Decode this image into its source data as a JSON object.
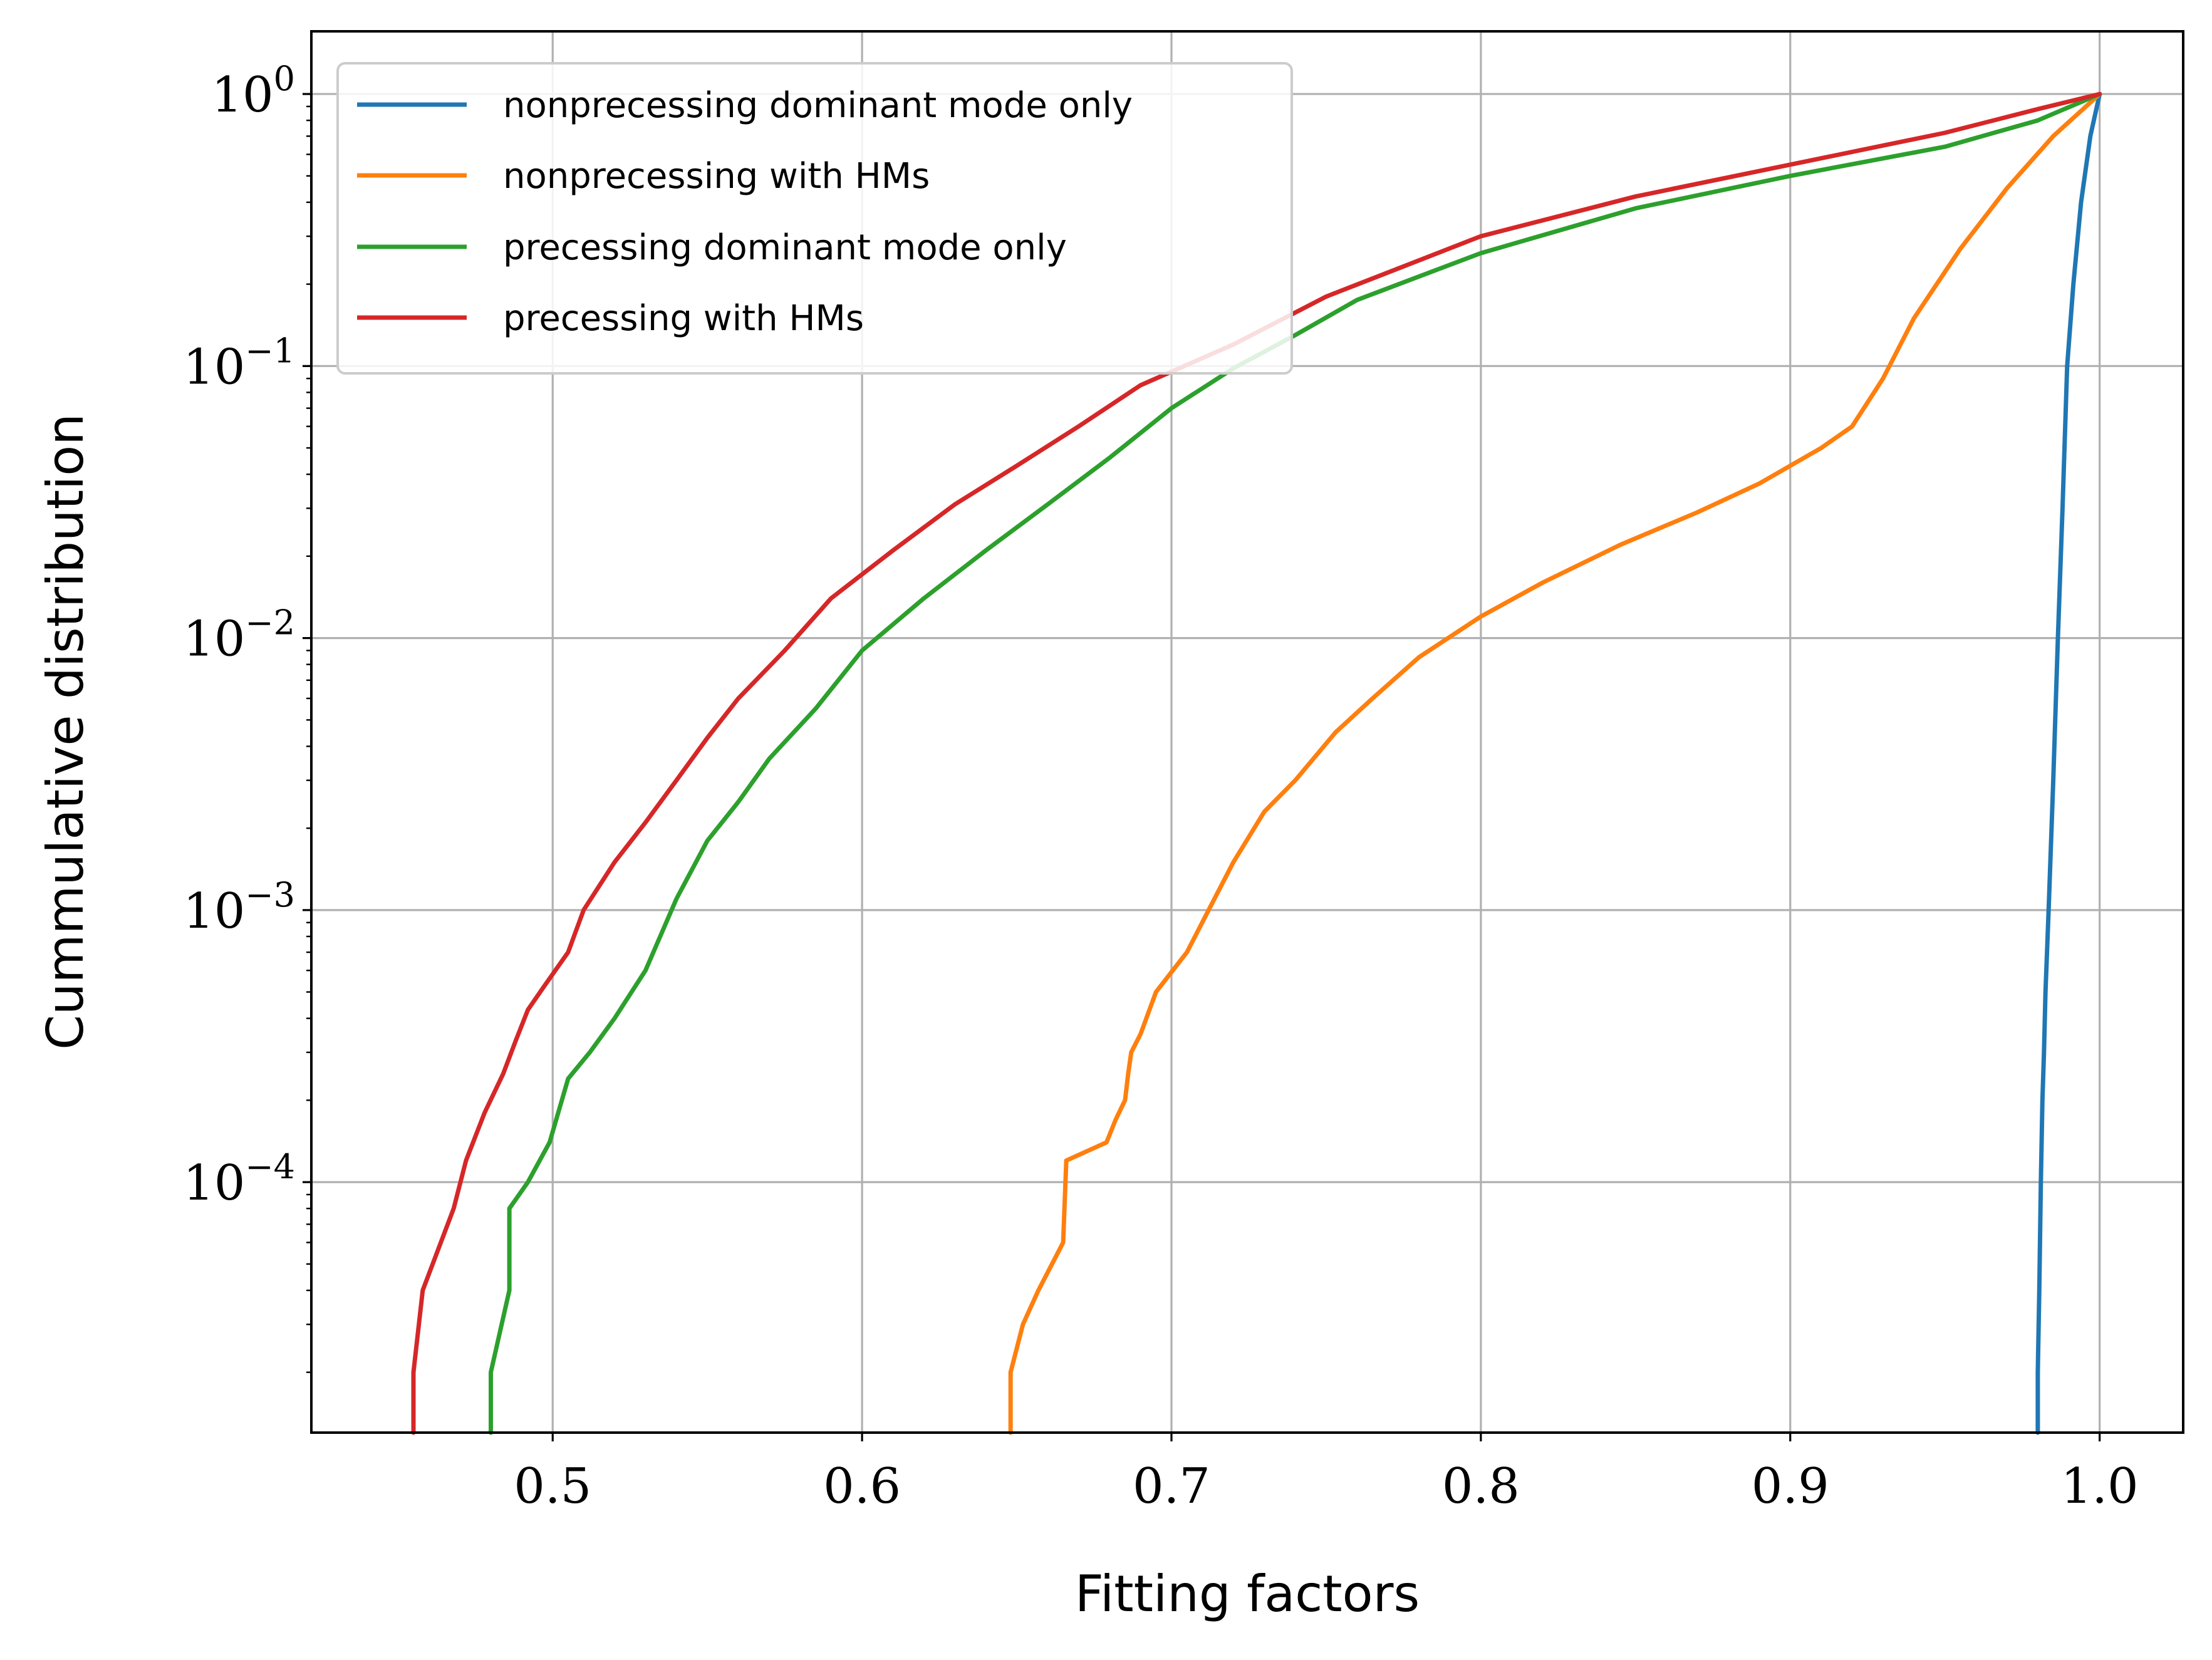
{
  "chart_data": {
    "type": "line",
    "xlabel": "Fitting factors",
    "ylabel": "Cummulative distribution",
    "xlim": [
      0.422,
      1.027
    ],
    "ylim": [
      1.2e-05,
      1.7
    ],
    "yscale": "log",
    "grid": true,
    "legend_position": "top-left",
    "x_ticks": [
      {
        "value": 0.5,
        "label": "0.5"
      },
      {
        "value": 0.6,
        "label": "0.6"
      },
      {
        "value": 0.7,
        "label": "0.7"
      },
      {
        "value": 0.8,
        "label": "0.8"
      },
      {
        "value": 0.9,
        "label": "0.9"
      },
      {
        "value": 1.0,
        "label": "1.0"
      }
    ],
    "y_ticks": [
      {
        "value": 0.0001,
        "base": "10",
        "exp": "−4"
      },
      {
        "value": 0.001,
        "base": "10",
        "exp": "−3"
      },
      {
        "value": 0.01,
        "base": "10",
        "exp": "−2"
      },
      {
        "value": 0.1,
        "base": "10",
        "exp": "−1"
      },
      {
        "value": 1,
        "base": "10",
        "exp": "0"
      }
    ],
    "series": [
      {
        "name": "nonprecessing dominant mode only",
        "color": "#1f77b4",
        "points": [
          [
            0.98,
            1.2e-05
          ],
          [
            0.98,
            2e-05
          ],
          [
            0.9805,
            4e-05
          ],
          [
            0.981,
            0.0001
          ],
          [
            0.9815,
            0.0002
          ],
          [
            0.982,
            0.0003
          ],
          [
            0.9825,
            0.0005
          ],
          [
            0.9835,
            0.001
          ],
          [
            0.985,
            0.003
          ],
          [
            0.9865,
            0.01
          ],
          [
            0.988,
            0.03
          ],
          [
            0.9895,
            0.1
          ],
          [
            0.9915,
            0.2
          ],
          [
            0.994,
            0.4
          ],
          [
            0.997,
            0.7
          ],
          [
            1.0,
            1.0
          ]
        ]
      },
      {
        "name": "nonprecessing with HMs",
        "color": "#ff7f0e",
        "points": [
          [
            0.648,
            1.2e-05
          ],
          [
            0.648,
            2e-05
          ],
          [
            0.652,
            3e-05
          ],
          [
            0.657,
            4e-05
          ],
          [
            0.665,
            6e-05
          ],
          [
            0.666,
            0.00012
          ],
          [
            0.679,
            0.00014
          ],
          [
            0.682,
            0.00017
          ],
          [
            0.685,
            0.0002
          ],
          [
            0.686,
            0.00025
          ],
          [
            0.687,
            0.0003
          ],
          [
            0.69,
            0.00035
          ],
          [
            0.695,
            0.0005
          ],
          [
            0.705,
            0.0007
          ],
          [
            0.712,
            0.001
          ],
          [
            0.72,
            0.0015
          ],
          [
            0.73,
            0.0023
          ],
          [
            0.74,
            0.003
          ],
          [
            0.753,
            0.0045
          ],
          [
            0.765,
            0.006
          ],
          [
            0.78,
            0.0085
          ],
          [
            0.8,
            0.012
          ],
          [
            0.82,
            0.016
          ],
          [
            0.845,
            0.022
          ],
          [
            0.87,
            0.029
          ],
          [
            0.89,
            0.037
          ],
          [
            0.91,
            0.05
          ],
          [
            0.92,
            0.06
          ],
          [
            0.93,
            0.09
          ],
          [
            0.94,
            0.15
          ],
          [
            0.955,
            0.27
          ],
          [
            0.97,
            0.45
          ],
          [
            0.985,
            0.7
          ],
          [
            1.0,
            1.0
          ]
        ]
      },
      {
        "name": "precessing dominant mode only",
        "color": "#2ca02c",
        "points": [
          [
            0.48,
            1.2e-05
          ],
          [
            0.48,
            2e-05
          ],
          [
            0.486,
            4e-05
          ],
          [
            0.486,
            8e-05
          ],
          [
            0.492,
            0.0001
          ],
          [
            0.499,
            0.00014
          ],
          [
            0.505,
            0.00024
          ],
          [
            0.512,
            0.0003
          ],
          [
            0.52,
            0.0004
          ],
          [
            0.53,
            0.0006
          ],
          [
            0.54,
            0.0011
          ],
          [
            0.55,
            0.0018
          ],
          [
            0.56,
            0.0025
          ],
          [
            0.57,
            0.0036
          ],
          [
            0.585,
            0.0055
          ],
          [
            0.6,
            0.009
          ],
          [
            0.62,
            0.014
          ],
          [
            0.64,
            0.021
          ],
          [
            0.66,
            0.031
          ],
          [
            0.68,
            0.046
          ],
          [
            0.7,
            0.07
          ],
          [
            0.72,
            0.098
          ],
          [
            0.74,
            0.13
          ],
          [
            0.76,
            0.175
          ],
          [
            0.8,
            0.26
          ],
          [
            0.85,
            0.38
          ],
          [
            0.9,
            0.5
          ],
          [
            0.95,
            0.64
          ],
          [
            0.98,
            0.8
          ],
          [
            1.0,
            1.0
          ]
        ]
      },
      {
        "name": "precessing with HMs",
        "color": "#d62728",
        "points": [
          [
            0.455,
            1.2e-05
          ],
          [
            0.455,
            2e-05
          ],
          [
            0.458,
            4e-05
          ],
          [
            0.468,
            8e-05
          ],
          [
            0.472,
            0.00012
          ],
          [
            0.478,
            0.00018
          ],
          [
            0.484,
            0.00025
          ],
          [
            0.488,
            0.00033
          ],
          [
            0.492,
            0.00043
          ],
          [
            0.497,
            0.00052
          ],
          [
            0.505,
            0.0007
          ],
          [
            0.51,
            0.001
          ],
          [
            0.52,
            0.0015
          ],
          [
            0.53,
            0.0021
          ],
          [
            0.54,
            0.003
          ],
          [
            0.55,
            0.0043
          ],
          [
            0.56,
            0.006
          ],
          [
            0.575,
            0.009
          ],
          [
            0.59,
            0.014
          ],
          [
            0.61,
            0.021
          ],
          [
            0.63,
            0.031
          ],
          [
            0.65,
            0.043
          ],
          [
            0.67,
            0.06
          ],
          [
            0.69,
            0.085
          ],
          [
            0.72,
            0.12
          ],
          [
            0.75,
            0.18
          ],
          [
            0.8,
            0.3
          ],
          [
            0.85,
            0.42
          ],
          [
            0.9,
            0.55
          ],
          [
            0.95,
            0.72
          ],
          [
            0.98,
            0.88
          ],
          [
            1.0,
            1.0
          ]
        ]
      }
    ]
  }
}
